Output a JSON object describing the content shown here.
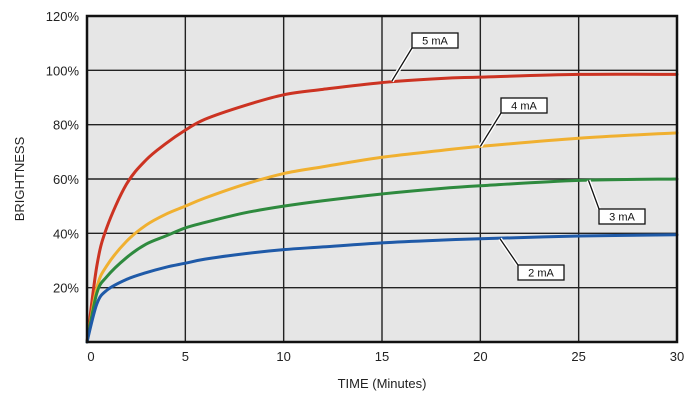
{
  "chart_data": {
    "type": "line",
    "title": "",
    "xlabel": "TIME (Minutes)",
    "ylabel": "BRIGHTNESS",
    "xlim": [
      0,
      30
    ],
    "ylim": [
      0,
      120
    ],
    "x_ticks": [
      0,
      5,
      10,
      15,
      20,
      25,
      30
    ],
    "x_tick_labels": [
      "0",
      "5",
      "10",
      "15",
      "20",
      "25",
      "30"
    ],
    "y_ticks": [
      20,
      40,
      60,
      80,
      100,
      120
    ],
    "y_tick_labels": [
      "20%",
      "40%",
      "60%",
      "80%",
      "100%",
      "120%"
    ],
    "grid": true,
    "plot_background": "#e6e6e6",
    "x": [
      0,
      0.5,
      1,
      2,
      3,
      4,
      5,
      6,
      8,
      10,
      12,
      15,
      18,
      20,
      25,
      30
    ],
    "series": [
      {
        "name": "5 mA",
        "color": "#cc3322",
        "values": [
          0,
          28,
          42,
          58,
          67,
          73,
          78,
          82,
          87,
          91,
          93,
          95.5,
          97,
          97.5,
          98.5,
          98.5
        ]
      },
      {
        "name": "4 mA",
        "color": "#f0b030",
        "values": [
          0,
          20,
          28,
          37,
          43,
          47,
          50,
          53,
          58,
          62,
          64.5,
          68,
          70.5,
          72,
          75,
          77
        ]
      },
      {
        "name": "3 mA",
        "color": "#2e8a3e",
        "values": [
          0,
          18,
          24,
          31,
          36,
          39,
          42,
          44,
          47.5,
          50,
          52,
          54.5,
          56.5,
          57.5,
          59.5,
          60
        ]
      },
      {
        "name": "2 mA",
        "color": "#1f5aa8",
        "values": [
          0,
          14,
          19,
          23,
          25.5,
          27.5,
          29,
          30.5,
          32.5,
          34,
          35,
          36.5,
          37.5,
          38,
          39,
          39.5
        ]
      }
    ]
  }
}
